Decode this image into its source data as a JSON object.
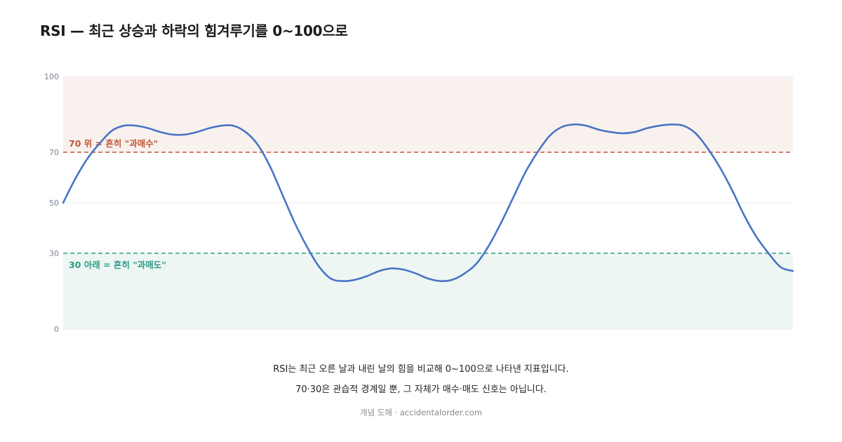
{
  "title": "RSI — 최근 상승과 하락의 힘겨루기를 0~100으로",
  "colors": {
    "line": "#4a74c4",
    "overbought": "#c0573a",
    "overbought_bg": "#f8f1ee",
    "oversold": "#2e9a84",
    "oversold_bg": "#eef6f4",
    "grid": "#e6e9ee",
    "tick": "#7a8496"
  },
  "chart_data": {
    "type": "line",
    "title": "RSI — 최근 상승과 하락의 힘겨루기를 0~100으로",
    "xlabel": "",
    "ylabel": "",
    "ylim": [
      0,
      100
    ],
    "yticks": [
      0,
      30,
      50,
      70,
      100
    ],
    "xlim": [
      0,
      60
    ],
    "grid": true,
    "series": [
      {
        "values": [
          50,
          59.5,
          67.5,
          73.5,
          78.5,
          80.5,
          80.5,
          79.5,
          78,
          77,
          77,
          78,
          79.5,
          80.5,
          80.5,
          78,
          73,
          64.5,
          53.5,
          42.5,
          33,
          25,
          20,
          19,
          19.5,
          21,
          23,
          24,
          23.5,
          22,
          20,
          19,
          19.5,
          22,
          26,
          33,
          42,
          52,
          62,
          70,
          76.5,
          80,
          81,
          80.5,
          79,
          78,
          77.5,
          78,
          79.5,
          80.5,
          81,
          80.5,
          77.5,
          71.5,
          64,
          55,
          45,
          36.5,
          30,
          24.5,
          23
        ]
      }
    ],
    "thresholds": [
      {
        "value": 70,
        "label": "70 위 = 흔히 \"과매수\""
      },
      {
        "value": 30,
        "label": "30 아래 = 흔히 \"과매도\""
      }
    ]
  },
  "caption_line1": "RSI는 최근 오른 날과 내린 날의 힘을 비교해 0~100으로 나타낸 지표입니다.",
  "caption_line2": "70·30은 관습적 경계일 뿐, 그 자체가 매수·매도 신호는 아닙니다.",
  "source": "개념 도해 · accidentalorder.com"
}
